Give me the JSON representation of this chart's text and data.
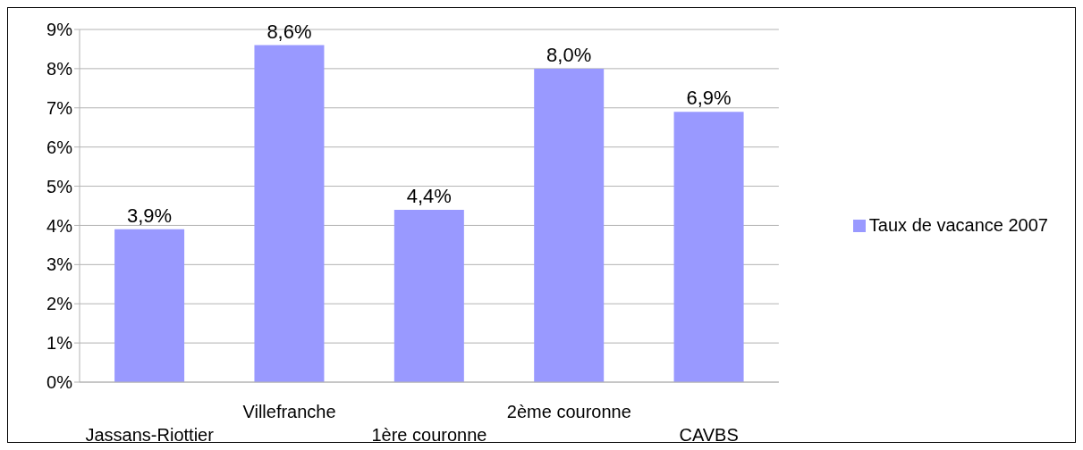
{
  "chart_data": {
    "type": "bar",
    "categories": [
      "Jassans-Riottier",
      "Villefranche",
      "1ère couronne",
      "2ème couronne",
      "CAVBS"
    ],
    "series": [
      {
        "name": "Taux de vacance 2007",
        "color": "#9999ff",
        "values": [
          3.9,
          8.6,
          4.4,
          8.0,
          6.9
        ],
        "value_labels": [
          "3,9%",
          "8,6%",
          "4,4%",
          "8,0%",
          "6,9%"
        ]
      }
    ],
    "ylim": [
      0,
      9
    ],
    "yticks": [
      {
        "value": 0,
        "label": "0%"
      },
      {
        "value": 1,
        "label": "1%"
      },
      {
        "value": 2,
        "label": "2%"
      },
      {
        "value": 3,
        "label": "3%"
      },
      {
        "value": 4,
        "label": "4%"
      },
      {
        "value": 5,
        "label": "5%"
      },
      {
        "value": 6,
        "label": "6%"
      },
      {
        "value": 7,
        "label": "7%"
      },
      {
        "value": 8,
        "label": "8%"
      },
      {
        "value": 9,
        "label": "9%"
      }
    ],
    "grid": "y",
    "legend": "right"
  }
}
